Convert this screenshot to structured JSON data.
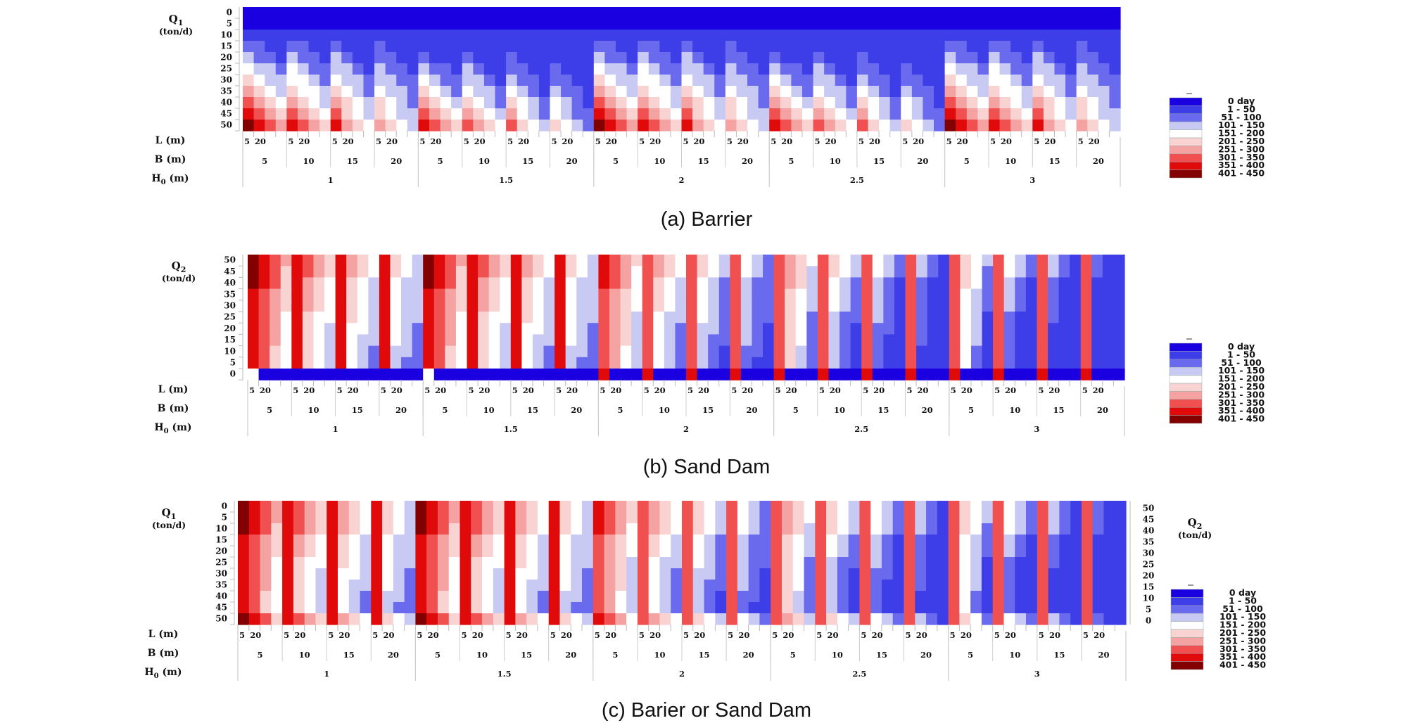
{
  "palette": [
    {
      "label": "0  day",
      "color": "#1a00e0"
    },
    {
      "label": "1 -  50",
      "color": "#3e3ee8"
    },
    {
      "label": "51 - 100",
      "color": "#6a6aee"
    },
    {
      "label": "101 - 150",
      "color": "#c8caf4"
    },
    {
      "label": "151 - 200",
      "color": "#ffffff"
    },
    {
      "label": "201 - 250",
      "color": "#f9d2d2"
    },
    {
      "label": "251 - 300",
      "color": "#f4a2a2"
    },
    {
      "label": "301 - 350",
      "color": "#f05050"
    },
    {
      "label": "351 - 400",
      "color": "#e00a0a"
    },
    {
      "label": "401 - 450",
      "color": "#820000"
    }
  ],
  "chart_data": [
    {
      "type": "heatmap",
      "caption": "(a) Barrier",
      "y_axis": {
        "label": "Q1",
        "unit": "(ton/d)",
        "ticks": [
          "0",
          "5",
          "10",
          "15",
          "20",
          "25",
          "30",
          "35",
          "40",
          "45",
          "50"
        ]
      },
      "x_axis_rows": [
        {
          "label": "L (m)",
          "ticks": [
            "5",
            "20"
          ]
        },
        {
          "label": "B (m)",
          "ticks": [
            "5",
            "10",
            "15",
            "20"
          ]
        },
        {
          "label": "H0 (m)",
          "ticks": [
            "1",
            "1.5",
            "2",
            "2.5",
            "3"
          ]
        }
      ],
      "legend": {
        "labels": [
          "0  day",
          "1 -  50",
          "51 - 100",
          "101 - 150",
          "151 - 200",
          "201 - 250",
          "251 - 300",
          "301 - 350",
          "351 - 400",
          "401 - 450"
        ],
        "placement": "right"
      },
      "class_index_note": "values are legend class indices 0-9",
      "values_by_row_H0_1": [
        [
          0,
          0,
          0,
          0,
          0,
          0,
          0,
          0,
          0,
          0,
          0,
          0,
          0,
          0,
          0,
          0
        ],
        [
          0,
          0,
          0,
          0,
          0,
          0,
          0,
          0,
          0,
          0,
          0,
          0,
          0,
          0,
          0,
          0
        ],
        [
          1,
          1,
          1,
          1,
          1,
          1,
          1,
          1,
          1,
          1,
          1,
          1,
          1,
          1,
          1,
          1
        ],
        [
          2,
          2,
          1,
          1,
          2,
          2,
          1,
          1,
          2,
          1,
          1,
          1,
          2,
          1,
          1,
          1
        ],
        [
          3,
          2,
          2,
          1,
          3,
          2,
          2,
          1,
          3,
          2,
          1,
          1,
          2,
          2,
          1,
          1
        ],
        [
          4,
          3,
          3,
          2,
          4,
          3,
          2,
          2,
          3,
          3,
          2,
          1,
          3,
          2,
          2,
          1
        ],
        [
          5,
          4,
          3,
          3,
          4,
          4,
          3,
          2,
          4,
          3,
          3,
          2,
          3,
          3,
          2,
          2
        ],
        [
          6,
          5,
          4,
          3,
          5,
          4,
          4,
          3,
          5,
          4,
          3,
          2,
          4,
          3,
          3,
          2
        ],
        [
          7,
          6,
          5,
          4,
          6,
          5,
          4,
          3,
          6,
          5,
          4,
          3,
          5,
          4,
          3,
          2
        ],
        [
          8,
          7,
          6,
          5,
          7,
          6,
          5,
          4,
          7,
          5,
          4,
          3,
          5,
          4,
          3,
          3
        ],
        [
          9,
          8,
          7,
          6,
          8,
          7,
          6,
          5,
          8,
          6,
          5,
          4,
          6,
          5,
          4,
          3
        ]
      ]
    },
    {
      "type": "heatmap",
      "caption": "(b) Sand Dam",
      "y_axis": {
        "label": "Q2",
        "unit": "(ton/d)",
        "ticks": [
          "50",
          "45",
          "40",
          "35",
          "30",
          "25",
          "20",
          "15",
          "10",
          "5",
          "0"
        ]
      },
      "x_axis_rows": [
        {
          "label": "L (m)",
          "ticks": [
            "5",
            "20"
          ]
        },
        {
          "label": "B (m)",
          "ticks": [
            "5",
            "10",
            "15",
            "20"
          ]
        },
        {
          "label": "H0 (m)",
          "ticks": [
            "1",
            "1.5",
            "2",
            "2.5",
            "3"
          ]
        }
      ],
      "legend": {
        "labels": [
          "0  day",
          "1 -  50",
          "51 - 100",
          "101 - 150",
          "151 - 200",
          "201 - 250",
          "251 - 300",
          "301 - 350",
          "351 - 400",
          "401 - 450"
        ],
        "placement": "right"
      },
      "class_index_note": "values are legend class indices 0-9; bottom row (Q2 = 0) is mostly 0 day",
      "values_by_row_H0_1": [
        [
          9,
          8,
          7,
          6,
          8,
          7,
          6,
          5,
          8,
          6,
          5,
          4,
          6,
          5,
          4,
          3
        ],
        [
          9,
          8,
          7,
          5,
          8,
          7,
          6,
          5,
          7,
          6,
          5,
          4,
          6,
          5,
          4,
          3
        ],
        [
          9,
          8,
          7,
          5,
          8,
          6,
          5,
          4,
          7,
          5,
          4,
          3,
          5,
          4,
          3,
          3
        ],
        [
          8,
          7,
          6,
          5,
          7,
          6,
          5,
          4,
          6,
          5,
          4,
          3,
          5,
          4,
          3,
          3
        ],
        [
          8,
          7,
          6,
          5,
          7,
          6,
          5,
          4,
          6,
          5,
          4,
          3,
          5,
          4,
          3,
          3
        ],
        [
          8,
          7,
          6,
          4,
          7,
          5,
          4,
          4,
          6,
          5,
          4,
          3,
          5,
          4,
          3,
          3
        ],
        [
          8,
          7,
          6,
          4,
          7,
          5,
          4,
          3,
          6,
          4,
          4,
          3,
          5,
          4,
          3,
          2
        ],
        [
          8,
          7,
          6,
          4,
          7,
          5,
          4,
          3,
          6,
          4,
          3,
          3,
          5,
          4,
          3,
          2
        ],
        [
          8,
          7,
          5,
          4,
          7,
          5,
          4,
          3,
          6,
          4,
          3,
          2,
          5,
          3,
          3,
          2
        ],
        [
          8,
          7,
          5,
          4,
          7,
          5,
          4,
          3,
          5,
          4,
          3,
          2,
          4,
          3,
          2,
          2
        ],
        [
          8,
          4,
          0,
          0,
          8,
          4,
          0,
          0,
          0,
          0,
          0,
          0,
          0,
          0,
          0,
          0
        ]
      ]
    },
    {
      "type": "heatmap",
      "caption": "(c) Barier or Sand Dam",
      "y_axis": {
        "label": "Q1",
        "unit": "(ton/d)",
        "ticks": [
          "0",
          "5",
          "10",
          "15",
          "20",
          "25",
          "30",
          "35",
          "40",
          "45",
          "50"
        ]
      },
      "y2_axis": {
        "label": "Q2",
        "unit": "(ton/d)",
        "ticks": [
          "50",
          "45",
          "40",
          "35",
          "30",
          "25",
          "20",
          "15",
          "10",
          "5",
          "0"
        ]
      },
      "x_axis_rows": [
        {
          "label": "L (m)",
          "ticks": [
            "5",
            "20"
          ]
        },
        {
          "label": "B (m)",
          "ticks": [
            "5",
            "10",
            "15",
            "20"
          ]
        },
        {
          "label": "H0 (m)",
          "ticks": [
            "1",
            "1.5",
            "2",
            "2.5",
            "3"
          ]
        }
      ],
      "legend": {
        "labels": [
          "0  day",
          "1 -  50",
          "51 - 100",
          "101 - 150",
          "151 - 200",
          "201 - 250",
          "251 - 300",
          "301 - 350",
          "351 - 400",
          "401 - 450"
        ],
        "placement": "right"
      },
      "class_index_note": "values are legend class indices 0-9",
      "values_by_row_H0_1": [
        [
          9,
          8,
          7,
          6,
          8,
          7,
          6,
          5,
          8,
          6,
          5,
          4,
          6,
          5,
          4,
          3
        ],
        [
          9,
          8,
          7,
          6,
          8,
          7,
          6,
          5,
          8,
          6,
          5,
          4,
          6,
          5,
          4,
          3
        ],
        [
          9,
          8,
          7,
          5,
          8,
          7,
          6,
          5,
          7,
          6,
          5,
          4,
          6,
          5,
          4,
          3
        ],
        [
          8,
          7,
          6,
          5,
          7,
          6,
          5,
          4,
          6,
          5,
          4,
          3,
          5,
          4,
          3,
          3
        ],
        [
          8,
          7,
          6,
          5,
          7,
          6,
          5,
          4,
          6,
          5,
          4,
          3,
          5,
          4,
          3,
          3
        ],
        [
          8,
          7,
          6,
          4,
          7,
          5,
          4,
          4,
          6,
          5,
          4,
          3,
          5,
          4,
          3,
          3
        ],
        [
          8,
          7,
          6,
          4,
          7,
          5,
          4,
          3,
          6,
          4,
          4,
          3,
          5,
          4,
          3,
          2
        ],
        [
          8,
          7,
          6,
          4,
          7,
          5,
          4,
          3,
          6,
          4,
          3,
          3,
          5,
          4,
          3,
          2
        ],
        [
          8,
          7,
          5,
          4,
          7,
          5,
          4,
          3,
          6,
          4,
          3,
          2,
          5,
          3,
          3,
          2
        ],
        [
          8,
          7,
          5,
          4,
          7,
          5,
          4,
          3,
          5,
          4,
          3,
          2,
          4,
          3,
          2,
          2
        ],
        [
          9,
          8,
          7,
          5,
          8,
          7,
          6,
          5,
          7,
          6,
          5,
          4,
          6,
          5,
          4,
          3
        ]
      ]
    }
  ]
}
